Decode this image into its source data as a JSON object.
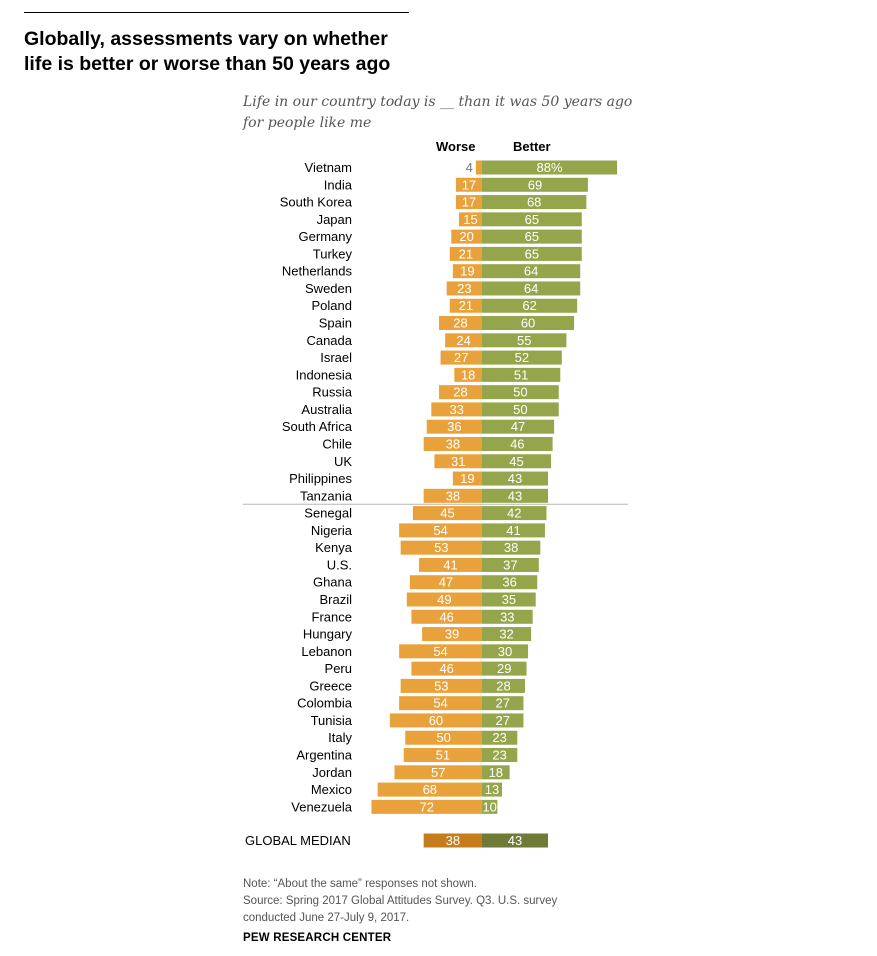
{
  "header": {
    "title_line1": "Globally, assessments vary on whether",
    "title_line2": "life is better or worse than 50 years ago",
    "subtitle_line1": "Life in our country today is __ than it was 50 years ago",
    "subtitle_line2": "for people like me"
  },
  "chart_data": {
    "type": "bar",
    "orientation": "horizontal-diverging",
    "series": [
      {
        "name": "Worse",
        "color": "#E9A23B"
      },
      {
        "name": "Better",
        "color": "#95A54C"
      }
    ],
    "rows": [
      {
        "country": "Vietnam",
        "worse": 4,
        "better": 88,
        "worse_label": "4",
        "better_label": "88%"
      },
      {
        "country": "India",
        "worse": 17,
        "better": 69,
        "worse_label": "17",
        "better_label": "69"
      },
      {
        "country": "South Korea",
        "worse": 17,
        "better": 68,
        "worse_label": "17",
        "better_label": "68"
      },
      {
        "country": "Japan",
        "worse": 15,
        "better": 65,
        "worse_label": "15",
        "better_label": "65"
      },
      {
        "country": "Germany",
        "worse": 20,
        "better": 65,
        "worse_label": "20",
        "better_label": "65"
      },
      {
        "country": "Turkey",
        "worse": 21,
        "better": 65,
        "worse_label": "21",
        "better_label": "65"
      },
      {
        "country": "Netherlands",
        "worse": 19,
        "better": 64,
        "worse_label": "19",
        "better_label": "64"
      },
      {
        "country": "Sweden",
        "worse": 23,
        "better": 64,
        "worse_label": "23",
        "better_label": "64"
      },
      {
        "country": "Poland",
        "worse": 21,
        "better": 62,
        "worse_label": "21",
        "better_label": "62"
      },
      {
        "country": "Spain",
        "worse": 28,
        "better": 60,
        "worse_label": "28",
        "better_label": "60"
      },
      {
        "country": "Canada",
        "worse": 24,
        "better": 55,
        "worse_label": "24",
        "better_label": "55"
      },
      {
        "country": "Israel",
        "worse": 27,
        "better": 52,
        "worse_label": "27",
        "better_label": "52"
      },
      {
        "country": "Indonesia",
        "worse": 18,
        "better": 51,
        "worse_label": "18",
        "better_label": "51"
      },
      {
        "country": "Russia",
        "worse": 28,
        "better": 50,
        "worse_label": "28",
        "better_label": "50"
      },
      {
        "country": "Australia",
        "worse": 33,
        "better": 50,
        "worse_label": "33",
        "better_label": "50"
      },
      {
        "country": "South Africa",
        "worse": 36,
        "better": 47,
        "worse_label": "36",
        "better_label": "47"
      },
      {
        "country": "Chile",
        "worse": 38,
        "better": 46,
        "worse_label": "38",
        "better_label": "46"
      },
      {
        "country": "UK",
        "worse": 31,
        "better": 45,
        "worse_label": "31",
        "better_label": "45"
      },
      {
        "country": "Philippines",
        "worse": 19,
        "better": 43,
        "worse_label": "19",
        "better_label": "43"
      },
      {
        "country": "Tanzania",
        "worse": 38,
        "better": 43,
        "worse_label": "38",
        "better_label": "43"
      },
      {
        "country": "Senegal",
        "worse": 45,
        "better": 42,
        "worse_label": "45",
        "better_label": "42"
      },
      {
        "country": "Nigeria",
        "worse": 54,
        "better": 41,
        "worse_label": "54",
        "better_label": "41"
      },
      {
        "country": "Kenya",
        "worse": 53,
        "better": 38,
        "worse_label": "53",
        "better_label": "38"
      },
      {
        "country": "U.S.",
        "worse": 41,
        "better": 37,
        "worse_label": "41",
        "better_label": "37"
      },
      {
        "country": "Ghana",
        "worse": 47,
        "better": 36,
        "worse_label": "47",
        "better_label": "36"
      },
      {
        "country": "Brazil",
        "worse": 49,
        "better": 35,
        "worse_label": "49",
        "better_label": "35"
      },
      {
        "country": "France",
        "worse": 46,
        "better": 33,
        "worse_label": "46",
        "better_label": "33"
      },
      {
        "country": "Hungary",
        "worse": 39,
        "better": 32,
        "worse_label": "39",
        "better_label": "32"
      },
      {
        "country": "Lebanon",
        "worse": 54,
        "better": 30,
        "worse_label": "54",
        "better_label": "30"
      },
      {
        "country": "Peru",
        "worse": 46,
        "better": 29,
        "worse_label": "46",
        "better_label": "29"
      },
      {
        "country": "Greece",
        "worse": 53,
        "better": 28,
        "worse_label": "53",
        "better_label": "28"
      },
      {
        "country": "Colombia",
        "worse": 54,
        "better": 27,
        "worse_label": "54",
        "better_label": "27"
      },
      {
        "country": "Tunisia",
        "worse": 60,
        "better": 27,
        "worse_label": "60",
        "better_label": "27"
      },
      {
        "country": "Italy",
        "worse": 50,
        "better": 23,
        "worse_label": "50",
        "better_label": "23"
      },
      {
        "country": "Argentina",
        "worse": 51,
        "better": 23,
        "worse_label": "51",
        "better_label": "23"
      },
      {
        "country": "Jordan",
        "worse": 57,
        "better": 18,
        "worse_label": "57",
        "better_label": "18"
      },
      {
        "country": "Mexico",
        "worse": 68,
        "better": 13,
        "worse_label": "68",
        "better_label": "13"
      },
      {
        "country": "Venezuela",
        "worse": 72,
        "better": 10,
        "worse_label": "72",
        "better_label": "10"
      }
    ],
    "separator_after_index": 19,
    "median": {
      "label": "GLOBAL MEDIAN",
      "worse": 38,
      "better": 43,
      "worse_label": "38",
      "better_label": "43",
      "worse_color": "#C47D1A",
      "better_color": "#6E7A35"
    }
  },
  "notes": {
    "line1": "Note: “About the same” responses not shown.",
    "line2": "Source: Spring 2017 Global Attitudes Survey. Q3. U.S. survey",
    "line3": "conducted June 27-July 9, 2017."
  },
  "footer": "PEW RESEARCH CENTER"
}
